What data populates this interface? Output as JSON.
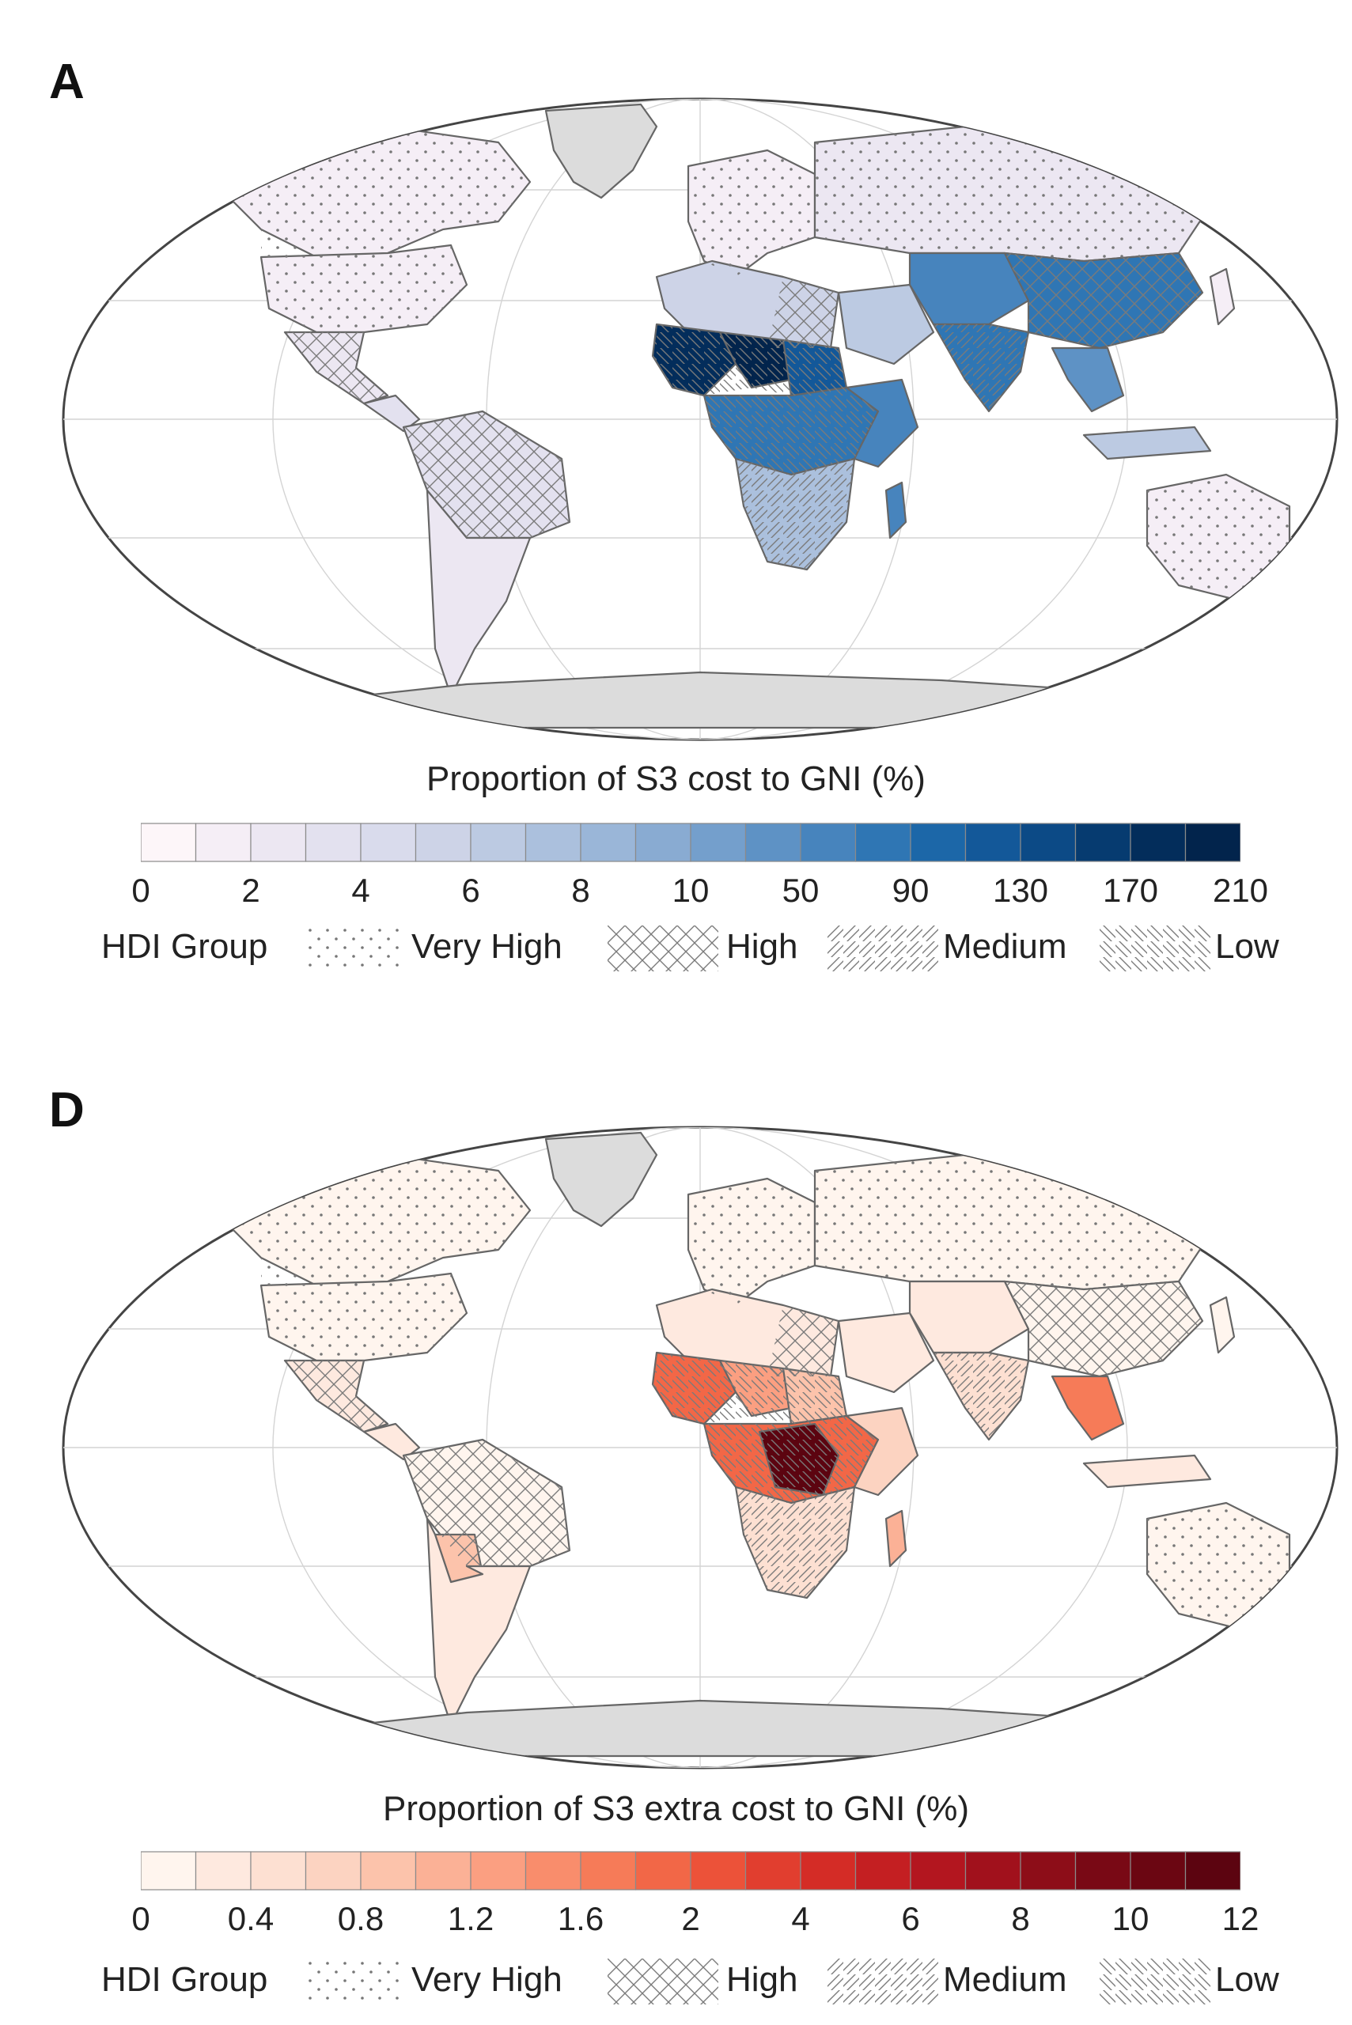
{
  "panels": [
    {
      "letter": "A",
      "colorbar_title": "Proportion of S3 cost to GNI (%)",
      "palette": [
        "#fdf6f9",
        "#f5eef6",
        "#ece7f2",
        "#e3e1ef",
        "#d9dbec",
        "#cdd3e7",
        "#bccae2",
        "#abc0dd",
        "#9ab6d8",
        "#89abd2",
        "#749fcc",
        "#5e92c5",
        "#4784bd",
        "#2f76b4",
        "#1c67a8",
        "#135899",
        "#0c4a86",
        "#063b70",
        "#032d5b",
        "#02244c"
      ],
      "ticks": [
        "0",
        "2",
        "4",
        "6",
        "8",
        "10",
        "50",
        "90",
        "130",
        "170",
        "210"
      ],
      "ocean_pattern": "dots"
    },
    {
      "letter": "D",
      "colorbar_title": "Proportion of S3 extra cost to GNI (%)",
      "palette": [
        "#fff5ee",
        "#fee9df",
        "#fde0d2",
        "#fcd3c1",
        "#fcc3ab",
        "#fbb196",
        "#fb9f81",
        "#f98d6c",
        "#f67b58",
        "#f26747",
        "#ec5239",
        "#e13e2f",
        "#d42c26",
        "#c41f22",
        "#b3161f",
        "#a1111c",
        "#8d0d18",
        "#790915",
        "#6b0612",
        "#5c0410"
      ],
      "ticks": [
        "0",
        "0.4",
        "0.8",
        "1.2",
        "1.6",
        "2",
        "4",
        "6",
        "8",
        "10",
        "12"
      ],
      "ocean_pattern": "dots"
    }
  ],
  "legend": {
    "title": "HDI Group",
    "items": [
      {
        "label": "Very High",
        "pattern": "dots"
      },
      {
        "label": "High",
        "pattern": "crosshatch"
      },
      {
        "label": "Medium",
        "pattern": "forward-hatch"
      },
      {
        "label": "Low",
        "pattern": "back-hatch"
      }
    ]
  },
  "colors": {
    "outline": "#555555",
    "land_outline": "#6a6a6a",
    "antarctica": "#dddddd",
    "graticule": "#cfcfcf"
  }
}
